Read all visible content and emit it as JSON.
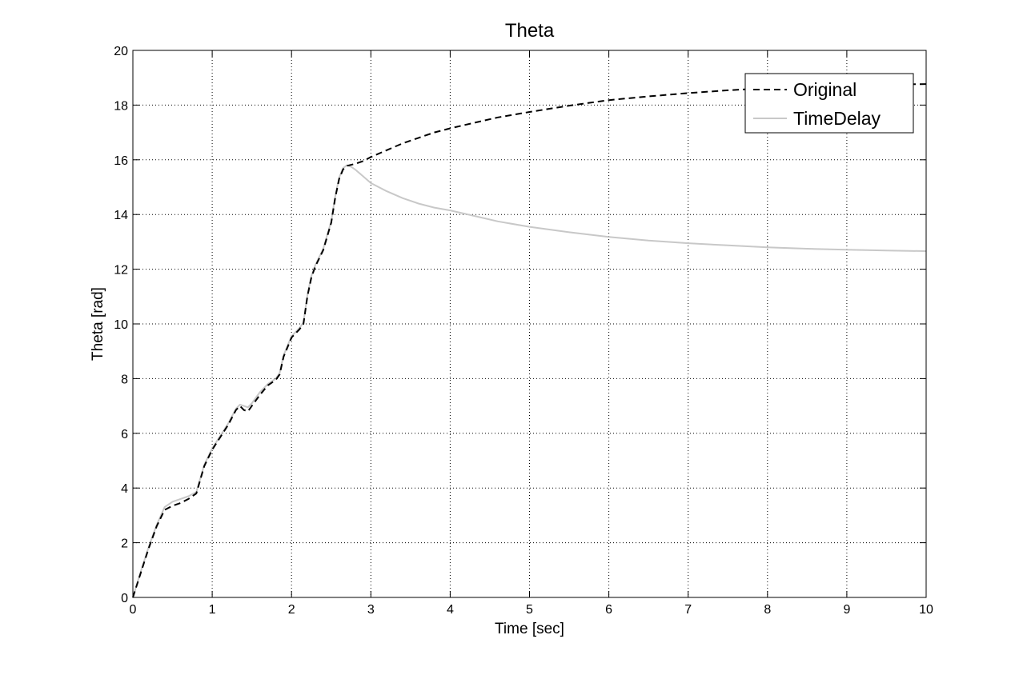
{
  "chart_data": {
    "type": "line",
    "title": "Theta",
    "xlabel": "Time [sec]",
    "ylabel": "Theta [rad]",
    "xlim": [
      0,
      10
    ],
    "ylim": [
      0,
      20
    ],
    "x_ticks": [
      0,
      1,
      2,
      3,
      4,
      5,
      6,
      7,
      8,
      9,
      10
    ],
    "y_ticks": [
      0,
      2,
      4,
      6,
      8,
      10,
      12,
      14,
      16,
      18,
      20
    ],
    "grid": true,
    "legend_position": "top-right",
    "series": [
      {
        "name": "Original",
        "color": "#000000",
        "style": "dashed",
        "points": [
          [
            0,
            0
          ],
          [
            0.1,
            0.9
          ],
          [
            0.2,
            1.8
          ],
          [
            0.3,
            2.6
          ],
          [
            0.4,
            3.2
          ],
          [
            0.5,
            3.35
          ],
          [
            0.6,
            3.45
          ],
          [
            0.7,
            3.6
          ],
          [
            0.8,
            3.8
          ],
          [
            0.85,
            4.3
          ],
          [
            0.9,
            4.8
          ],
          [
            1.0,
            5.4
          ],
          [
            1.1,
            5.85
          ],
          [
            1.2,
            6.3
          ],
          [
            1.3,
            6.85
          ],
          [
            1.35,
            7.0
          ],
          [
            1.4,
            6.85
          ],
          [
            1.45,
            6.8
          ],
          [
            1.5,
            7.0
          ],
          [
            1.6,
            7.4
          ],
          [
            1.7,
            7.75
          ],
          [
            1.8,
            7.95
          ],
          [
            1.85,
            8.15
          ],
          [
            1.9,
            8.8
          ],
          [
            2.0,
            9.5
          ],
          [
            2.1,
            9.8
          ],
          [
            2.15,
            10.0
          ],
          [
            2.2,
            11.0
          ],
          [
            2.25,
            11.7
          ],
          [
            2.3,
            12.1
          ],
          [
            2.4,
            12.7
          ],
          [
            2.5,
            13.7
          ],
          [
            2.55,
            14.6
          ],
          [
            2.6,
            15.3
          ],
          [
            2.65,
            15.65
          ],
          [
            2.7,
            15.78
          ],
          [
            2.8,
            15.85
          ],
          [
            2.9,
            15.95
          ],
          [
            3.0,
            16.1
          ],
          [
            3.2,
            16.35
          ],
          [
            3.4,
            16.6
          ],
          [
            3.6,
            16.8
          ],
          [
            3.8,
            17.0
          ],
          [
            4.0,
            17.15
          ],
          [
            4.3,
            17.35
          ],
          [
            4.6,
            17.55
          ],
          [
            5.0,
            17.75
          ],
          [
            5.5,
            17.98
          ],
          [
            6.0,
            18.18
          ],
          [
            6.5,
            18.32
          ],
          [
            7.0,
            18.44
          ],
          [
            7.5,
            18.54
          ],
          [
            8.0,
            18.62
          ],
          [
            8.5,
            18.67
          ],
          [
            9.0,
            18.72
          ],
          [
            9.5,
            18.75
          ],
          [
            10.0,
            18.77
          ]
        ]
      },
      {
        "name": "TimeDelay",
        "color": "#c8c8c8",
        "style": "solid",
        "points": [
          [
            0,
            0
          ],
          [
            0.1,
            0.95
          ],
          [
            0.2,
            1.85
          ],
          [
            0.3,
            2.65
          ],
          [
            0.4,
            3.3
          ],
          [
            0.5,
            3.5
          ],
          [
            0.6,
            3.6
          ],
          [
            0.7,
            3.7
          ],
          [
            0.8,
            3.85
          ],
          [
            0.85,
            4.35
          ],
          [
            0.9,
            4.85
          ],
          [
            1.0,
            5.45
          ],
          [
            1.1,
            5.9
          ],
          [
            1.2,
            6.35
          ],
          [
            1.3,
            6.9
          ],
          [
            1.35,
            7.05
          ],
          [
            1.4,
            7.0
          ],
          [
            1.45,
            6.95
          ],
          [
            1.5,
            7.1
          ],
          [
            1.6,
            7.5
          ],
          [
            1.7,
            7.8
          ],
          [
            1.8,
            8.0
          ],
          [
            1.85,
            8.2
          ],
          [
            1.9,
            8.85
          ],
          [
            2.0,
            9.55
          ],
          [
            2.1,
            9.85
          ],
          [
            2.15,
            10.05
          ],
          [
            2.2,
            11.05
          ],
          [
            2.25,
            11.75
          ],
          [
            2.3,
            12.15
          ],
          [
            2.4,
            12.75
          ],
          [
            2.5,
            13.75
          ],
          [
            2.55,
            14.65
          ],
          [
            2.6,
            15.35
          ],
          [
            2.65,
            15.7
          ],
          [
            2.7,
            15.8
          ],
          [
            2.75,
            15.75
          ],
          [
            2.8,
            15.65
          ],
          [
            2.9,
            15.4
          ],
          [
            3.0,
            15.15
          ],
          [
            3.2,
            14.85
          ],
          [
            3.4,
            14.6
          ],
          [
            3.6,
            14.4
          ],
          [
            3.8,
            14.25
          ],
          [
            4.0,
            14.15
          ],
          [
            4.3,
            13.95
          ],
          [
            4.6,
            13.75
          ],
          [
            5.0,
            13.55
          ],
          [
            5.5,
            13.35
          ],
          [
            6.0,
            13.18
          ],
          [
            6.5,
            13.05
          ],
          [
            7.0,
            12.95
          ],
          [
            7.5,
            12.87
          ],
          [
            8.0,
            12.8
          ],
          [
            8.5,
            12.75
          ],
          [
            9.0,
            12.71
          ],
          [
            9.5,
            12.68
          ],
          [
            10.0,
            12.66
          ]
        ]
      }
    ]
  }
}
